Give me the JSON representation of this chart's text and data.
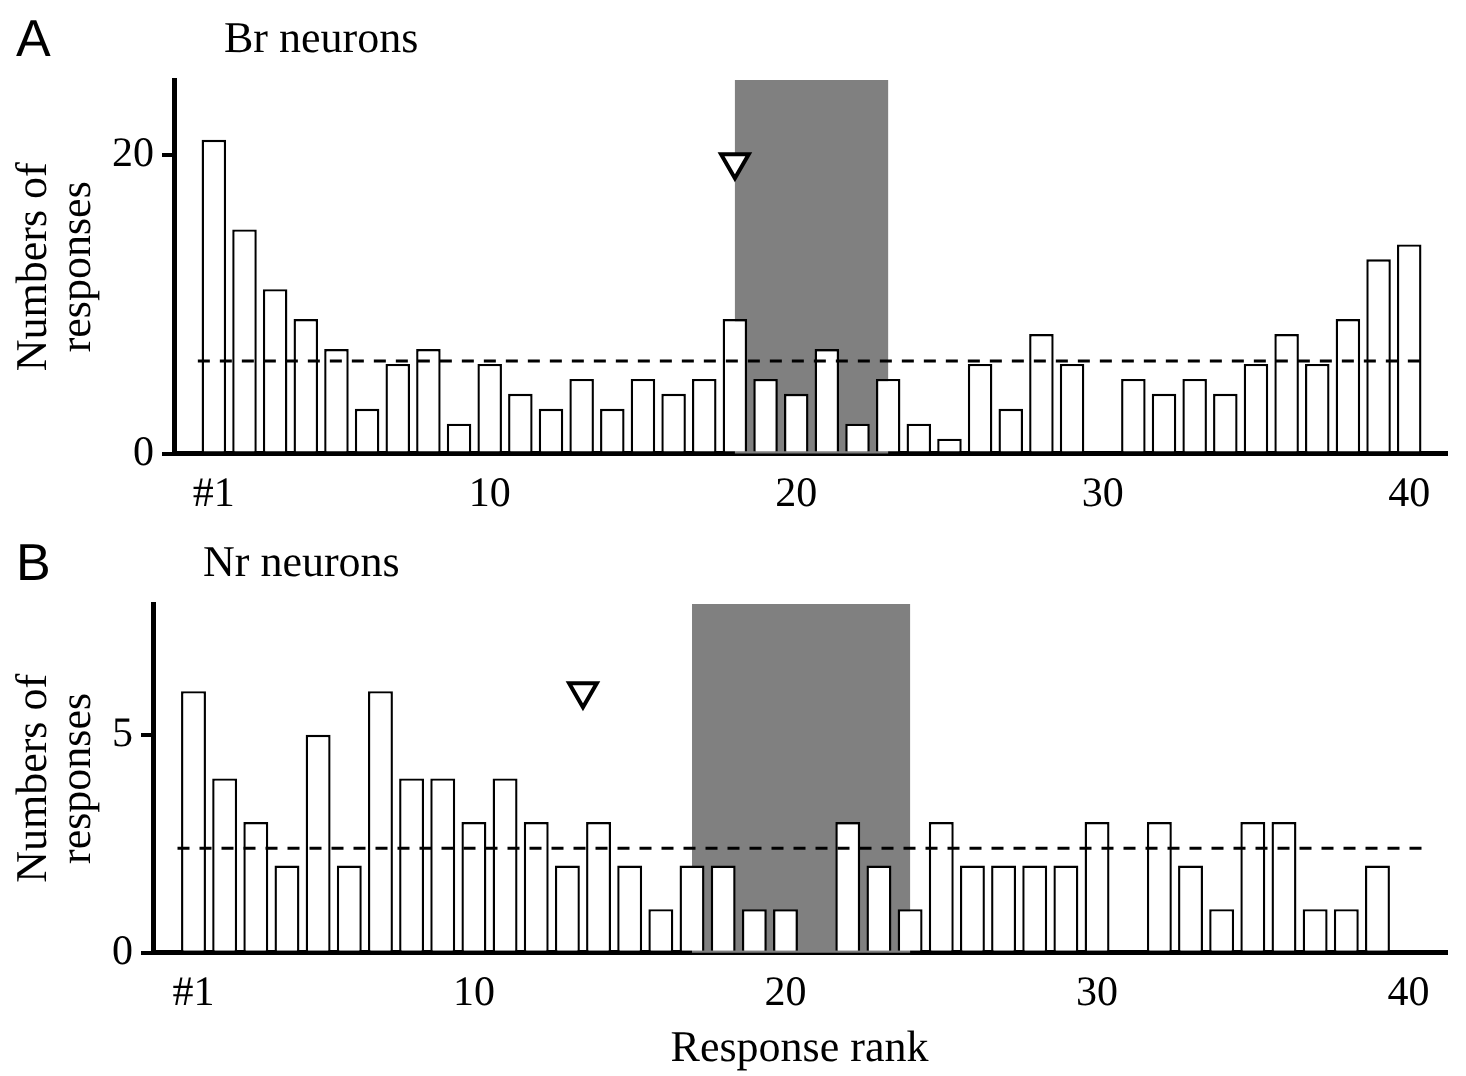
{
  "chart_data": [
    {
      "type": "bar",
      "title": "A",
      "subtitle": "Br neurons",
      "ylabel": "Numbers of\nresponses",
      "xlim": [
        -0.3,
        41.2
      ],
      "xticks": [
        {
          "value": 1,
          "label": "#1"
        },
        10,
        20,
        30,
        40
      ],
      "ylim": [
        0,
        25
      ],
      "yticks": [
        0,
        20
      ],
      "grid": false,
      "legend": false,
      "series": [
        {
          "color": "#ffffff",
          "x": [
            1,
            2,
            3,
            4,
            5,
            6,
            7,
            8,
            9,
            10,
            11,
            12,
            13,
            14,
            15,
            16,
            17,
            18,
            19,
            20,
            21,
            22,
            23,
            24,
            25,
            26,
            27,
            28,
            29,
            30,
            31,
            32,
            33,
            34,
            35,
            36,
            37,
            38,
            39,
            40
          ],
          "values": [
            21,
            15,
            11,
            9,
            7,
            3,
            6,
            7,
            2,
            6,
            4,
            3,
            5,
            3,
            5,
            4,
            5,
            9,
            5,
            4,
            7,
            2,
            5,
            2,
            1,
            6,
            3,
            8,
            6,
            0,
            5,
            4,
            5,
            4,
            6,
            8,
            6,
            9,
            13,
            14
          ]
        },
        {
          "type": "scatter",
          "color": "#ffffff",
          "marker": "triangle",
          "x": [
            18
          ],
          "values": [
            19.5
          ]
        }
      ],
      "ref_lines": [
        {
          "axis": "y",
          "value": 6.2,
          "color": "#000000",
          "line_style": "dashed"
        }
      ],
      "bands": [
        {
          "axis": "x",
          "from": 18,
          "to": 23,
          "color": "#808080"
        }
      ]
    },
    {
      "type": "bar",
      "title": "B",
      "subtitle": "Nr neurons",
      "xlabel": "Response rank",
      "ylabel": "Numbers of\nresponses",
      "xlim": [
        -0.3,
        41.2
      ],
      "xticks": [
        {
          "value": 1,
          "label": "#1"
        },
        10,
        20,
        30,
        40
      ],
      "ylim": [
        0,
        8
      ],
      "yticks": [
        0,
        5
      ],
      "grid": false,
      "legend": false,
      "series": [
        {
          "color": "#ffffff",
          "x": [
            1,
            2,
            3,
            4,
            5,
            6,
            7,
            8,
            9,
            10,
            11,
            12,
            13,
            14,
            15,
            16,
            17,
            18,
            19,
            20,
            21,
            22,
            23,
            24,
            25,
            26,
            27,
            28,
            29,
            30,
            31,
            32,
            33,
            34,
            35,
            36,
            37,
            38,
            39,
            40
          ],
          "values": [
            6,
            4,
            3,
            2,
            5,
            2,
            6,
            4,
            4,
            3,
            4,
            3,
            2,
            3,
            2,
            1,
            2,
            2,
            1,
            1,
            0,
            3,
            2,
            1,
            3,
            2,
            2,
            2,
            2,
            3,
            0,
            3,
            2,
            1,
            3,
            3,
            1,
            1,
            2,
            0
          ]
        },
        {
          "type": "scatter",
          "color": "#ffffff",
          "marker": "triangle",
          "x": [
            13.5
          ],
          "values": [
            6
          ]
        }
      ],
      "ref_lines": [
        {
          "axis": "y",
          "value": 2.4,
          "color": "#000000",
          "line_style": "dashed"
        }
      ],
      "bands": [
        {
          "axis": "x",
          "from": 17,
          "to": 24,
          "color": "#808080"
        }
      ]
    }
  ]
}
